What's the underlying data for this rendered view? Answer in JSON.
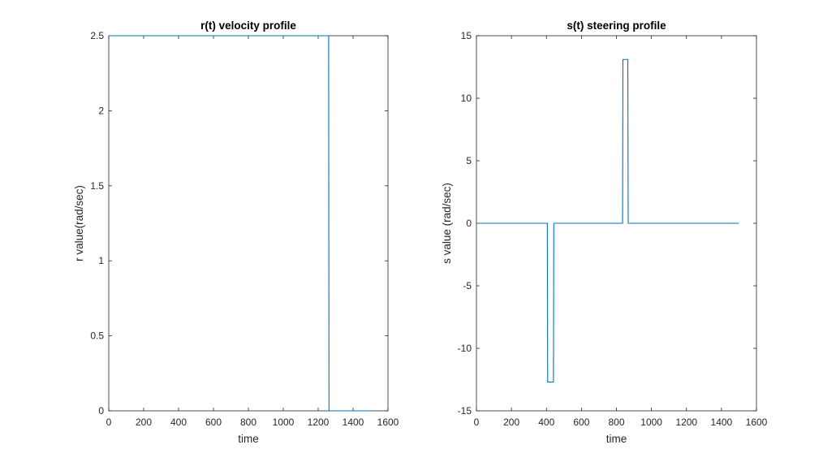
{
  "chart_data": [
    {
      "type": "line",
      "title": "r(t) velocity profile",
      "xlabel": "time",
      "ylabel": "r value(rad/sec)",
      "xlim": [
        0,
        1600
      ],
      "ylim": [
        0,
        2.5
      ],
      "xticks": [
        0,
        200,
        400,
        600,
        800,
        1000,
        1200,
        1400,
        1600
      ],
      "yticks": [
        0,
        0.5,
        1,
        1.5,
        2,
        2.5
      ],
      "xtick_labels": [
        "0",
        "200",
        "400",
        "600",
        "800",
        "1000",
        "1200",
        "1400",
        "1600"
      ],
      "ytick_labels": [
        "0",
        "0.5",
        "1",
        "1.5",
        "2",
        "2.5"
      ],
      "grid": false,
      "series": [
        {
          "color": "#0072BD",
          "x": [
            0,
            1260,
            1262,
            1500
          ],
          "y": [
            2.5,
            2.5,
            0,
            0
          ]
        }
      ]
    },
    {
      "type": "line",
      "title": "s(t) steering profile",
      "xlabel": "time",
      "ylabel": "s value (rad/sec)",
      "xlim": [
        0,
        1600
      ],
      "ylim": [
        -15,
        15
      ],
      "xticks": [
        0,
        200,
        400,
        600,
        800,
        1000,
        1200,
        1400,
        1600
      ],
      "yticks": [
        -15,
        -10,
        -5,
        0,
        5,
        10,
        15
      ],
      "xtick_labels": [
        "0",
        "200",
        "400",
        "600",
        "800",
        "1000",
        "1200",
        "1400",
        "1600"
      ],
      "ytick_labels": [
        "-15",
        "-10",
        "-5",
        "0",
        "5",
        "10",
        "15"
      ],
      "grid": false,
      "series": [
        {
          "color": "#0072BD",
          "x": [
            0,
            405,
            407,
            440,
            442,
            835,
            837,
            865,
            867,
            1500
          ],
          "y": [
            0,
            0,
            -12.7,
            -12.7,
            0,
            0,
            13.1,
            13.1,
            0,
            0
          ]
        }
      ]
    }
  ]
}
